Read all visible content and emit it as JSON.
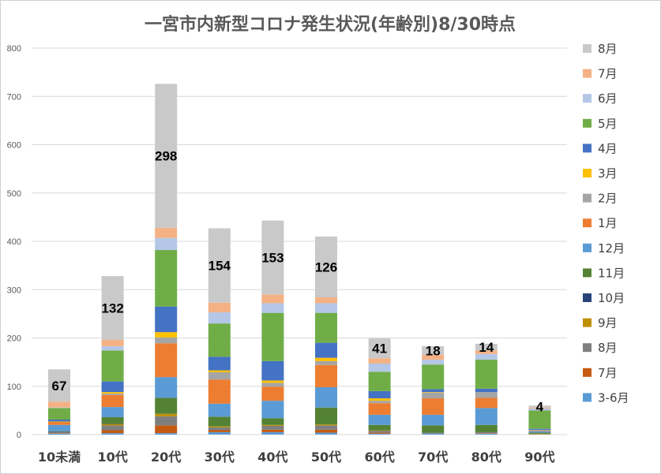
{
  "chart_data": {
    "type": "bar",
    "stacked": true,
    "title": "一宮市内新型コロナ発生状況(年齢別)8/30時点",
    "xlabel": "",
    "ylabel": "",
    "ylim": [
      0,
      800
    ],
    "yticks": [
      0,
      100,
      200,
      300,
      400,
      500,
      600,
      700,
      800
    ],
    "grid": true,
    "legend_position": "right",
    "categories": [
      "10未満",
      "10代",
      "20代",
      "30代",
      "40代",
      "50代",
      "60代",
      "70代",
      "80代",
      "90代"
    ],
    "series": [
      {
        "name": "3-6月",
        "color": "#5b9bd5",
        "values": [
          2,
          3,
          3,
          5,
          5,
          4,
          2,
          2,
          2,
          0
        ]
      },
      {
        "name": "7月",
        "color": "#c55a11",
        "values": [
          1,
          6,
          16,
          4,
          5,
          6,
          2,
          0,
          1,
          0
        ]
      },
      {
        "name": "8月",
        "color": "#7f7f7f",
        "values": [
          2,
          10,
          19,
          6,
          8,
          9,
          4,
          2,
          2,
          1
        ]
      },
      {
        "name": "9月",
        "color": "#bf9000",
        "values": [
          0,
          3,
          5,
          2,
          2,
          2,
          1,
          0,
          0,
          1
        ]
      },
      {
        "name": "10月",
        "color": "#264478",
        "values": [
          1,
          1,
          0,
          0,
          0,
          0,
          0,
          0,
          0,
          0
        ]
      },
      {
        "name": "11月",
        "color": "#548235",
        "values": [
          1,
          13,
          33,
          20,
          14,
          35,
          11,
          15,
          15,
          2
        ]
      },
      {
        "name": "12月",
        "color": "#5b9bd5",
        "values": [
          13,
          21,
          43,
          27,
          36,
          42,
          21,
          22,
          35,
          3
        ]
      },
      {
        "name": "1月",
        "color": "#ed7d31",
        "values": [
          6,
          25,
          70,
          50,
          29,
          46,
          24,
          34,
          21,
          1
        ]
      },
      {
        "name": "2月",
        "color": "#a5a5a5",
        "values": [
          0,
          3,
          12,
          15,
          8,
          8,
          5,
          12,
          12,
          2
        ]
      },
      {
        "name": "3月",
        "color": "#ffc000",
        "values": [
          1,
          3,
          11,
          4,
          5,
          7,
          5,
          1,
          0,
          0
        ]
      },
      {
        "name": "4月",
        "color": "#4472c4",
        "values": [
          4,
          22,
          53,
          28,
          40,
          31,
          15,
          6,
          7,
          2
        ]
      },
      {
        "name": "5月",
        "color": "#70ad47",
        "values": [
          24,
          64,
          117,
          69,
          100,
          62,
          40,
          51,
          60,
          38
        ]
      },
      {
        "name": "6月",
        "color": "#b4c7e7",
        "values": [
          1,
          9,
          25,
          23,
          20,
          20,
          17,
          10,
          12,
          4
        ]
      },
      {
        "name": "7月",
        "color": "#f4b183",
        "values": [
          12,
          13,
          21,
          20,
          18,
          12,
          11,
          10,
          7,
          2
        ]
      },
      {
        "name": "8月",
        "color": "#c9c9c9",
        "values": [
          67,
          132,
          298,
          154,
          153,
          126,
          41,
          18,
          14,
          4
        ]
      }
    ],
    "data_labels": [
      "67",
      "132",
      "298",
      "154",
      "153",
      "126",
      "41",
      "18",
      "14",
      "4"
    ],
    "legend_order": [
      14,
      13,
      12,
      11,
      10,
      9,
      8,
      7,
      6,
      5,
      4,
      3,
      2,
      1,
      0
    ]
  }
}
